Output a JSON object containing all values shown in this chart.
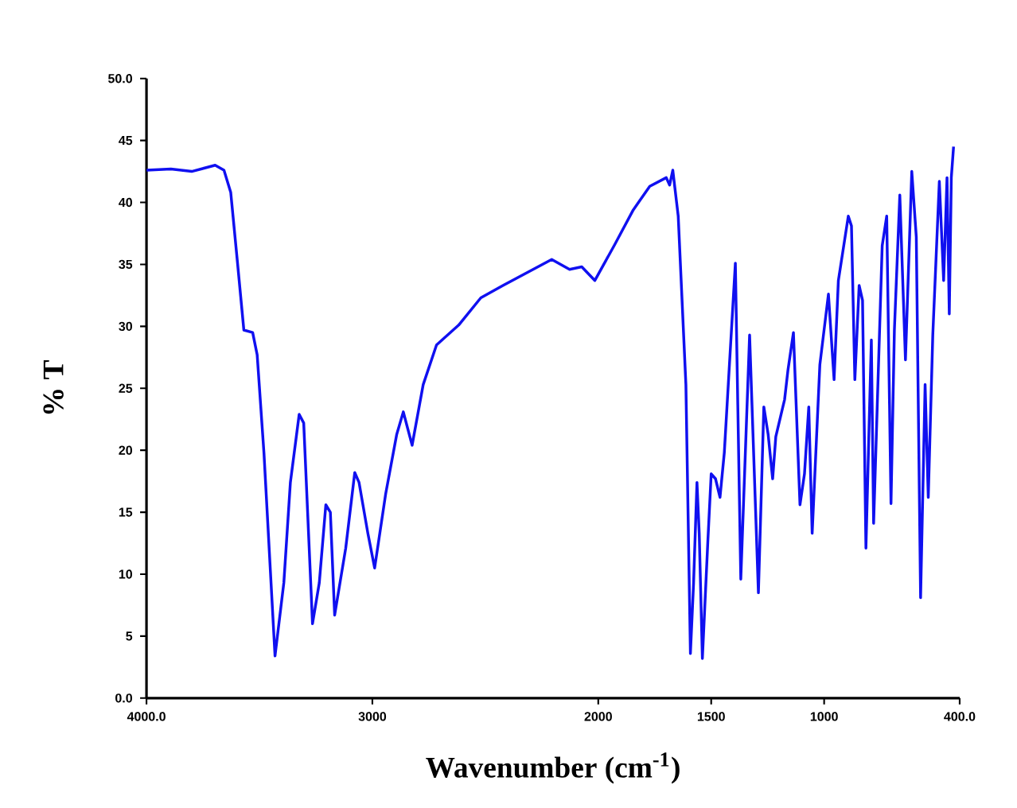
{
  "chart_data": {
    "type": "line",
    "xlabel": "Wavenumber (cm$^{-1}$)",
    "ylabel": "% T",
    "xlim": [
      4000,
      400
    ],
    "ylim": [
      0,
      50
    ],
    "xticks": [
      {
        "value": 4000,
        "label": "4000.0"
      },
      3000,
      2000,
      1500,
      1000,
      {
        "value": 400,
        "label": "400.0"
      }
    ],
    "yticks": [
      {
        "value": 0,
        "label": "0.0"
      },
      5,
      10,
      15,
      20,
      25,
      30,
      35,
      40,
      45,
      {
        "value": 50,
        "label": "50.0"
      }
    ],
    "grid": false,
    "marker": "none",
    "line_style": "solid",
    "series": [
      {
        "color": "#1010f0",
        "x": [
          4000,
          3892,
          3800,
          3696,
          3657,
          3627,
          3598,
          3569,
          3530,
          3510,
          3480,
          3431,
          3392,
          3363,
          3324,
          3304,
          3265,
          3235,
          3206,
          3186,
          3167,
          3118,
          3078,
          3059,
          3020,
          2990,
          2941,
          2892,
          2863,
          2824,
          2775,
          2716,
          2618,
          2520,
          2422,
          2206,
          2127,
          2073,
          2015,
          1927,
          1845,
          1772,
          1699,
          1684,
          1670,
          1646,
          1612,
          1592,
          1578,
          1563,
          1553,
          1539,
          1515,
          1500,
          1481,
          1461,
          1442,
          1393,
          1369,
          1330,
          1291,
          1267,
          1248,
          1228,
          1214,
          1175,
          1160,
          1136,
          1107,
          1087,
          1068,
          1053,
          1019,
          981,
          956,
          937,
          893,
          879,
          864,
          845,
          830,
          815,
          791,
          781,
          743,
          723,
          704,
          689,
          665,
          640,
          612,
          592,
          573,
          553,
          539,
          519,
          490,
          471,
          456,
          446,
          437,
          427
        ],
        "values": [
          42.6,
          42.7,
          42.5,
          43.0,
          42.6,
          40.8,
          35.3,
          29.7,
          29.5,
          27.7,
          19.8,
          3.4,
          9.3,
          17.4,
          22.9,
          22.2,
          6.0,
          9.3,
          15.6,
          15.0,
          6.7,
          12.1,
          18.2,
          17.4,
          13.3,
          10.5,
          16.5,
          21.3,
          23.1,
          20.4,
          25.3,
          28.5,
          30.1,
          32.3,
          33.3,
          35.4,
          34.6,
          34.8,
          33.7,
          36.6,
          39.4,
          41.3,
          42.0,
          41.4,
          42.6,
          38.9,
          25.3,
          3.6,
          9.3,
          17.4,
          13.3,
          3.2,
          12.6,
          18.1,
          17.7,
          16.2,
          19.8,
          35.1,
          9.6,
          29.3,
          8.5,
          23.5,
          21.3,
          17.7,
          21.1,
          24.1,
          26.5,
          29.5,
          15.6,
          18.1,
          23.5,
          13.3,
          26.9,
          32.6,
          25.7,
          33.7,
          38.9,
          38.1,
          25.7,
          33.3,
          32.1,
          12.1,
          28.9,
          14.1,
          36.5,
          38.9,
          15.7,
          29.7,
          40.6,
          27.3,
          42.5,
          37.2,
          8.1,
          25.3,
          16.2,
          29.3,
          41.7,
          33.7,
          42.0,
          31.0,
          42.0,
          44.5
        ]
      }
    ]
  }
}
